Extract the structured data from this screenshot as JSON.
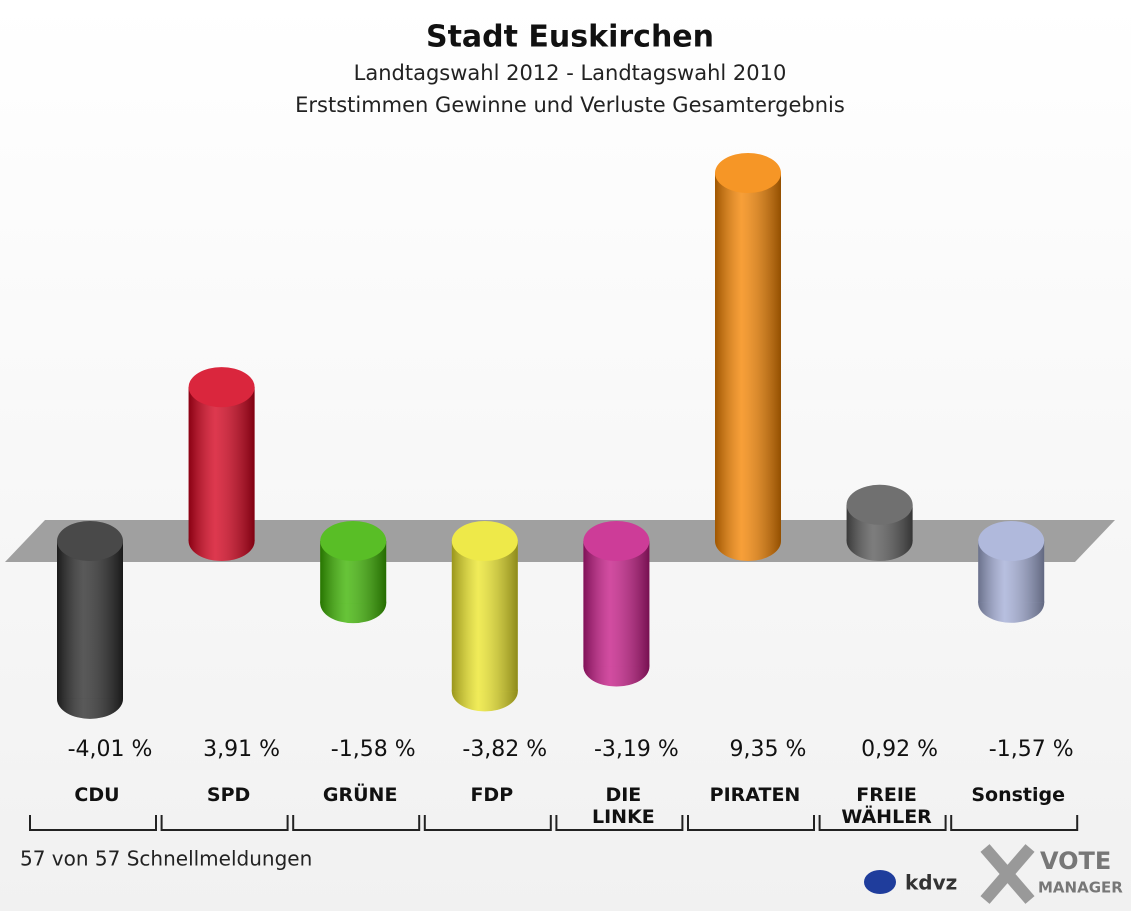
{
  "chart_data": {
    "type": "bar",
    "title": "Stadt Euskirchen",
    "subtitle": [
      "Landtagswahl 2012 - Landtagswahl 2010",
      "Erststimmen Gewinne und Verluste Gesamtergebnis"
    ],
    "categories": [
      "CDU",
      "SPD",
      "GRÜNE",
      "FDP",
      "DIE\nLINKE",
      "PIRATEN",
      "FREIE\nWÄHLER",
      "Sonstige"
    ],
    "values": [
      -4.01,
      3.91,
      -1.58,
      -3.82,
      -3.19,
      9.35,
      0.92,
      -1.57
    ],
    "value_labels": [
      "-4,01 %",
      "3,91 %",
      "-1,58 %",
      "-3,82 %",
      "-3,19 %",
      "9,35 %",
      "0,92 %",
      "-1,57 %"
    ],
    "colors": [
      "#2a2a2a",
      "#d4001c",
      "#3cb300",
      "#ece62a",
      "#c51a86",
      "#f58400",
      "#585858",
      "#a3add6"
    ]
  },
  "footer": {
    "note": "57 von 57 Schnellmeldungen",
    "logo": [
      "kdvz",
      "VOTE",
      "MANAGER"
    ]
  }
}
